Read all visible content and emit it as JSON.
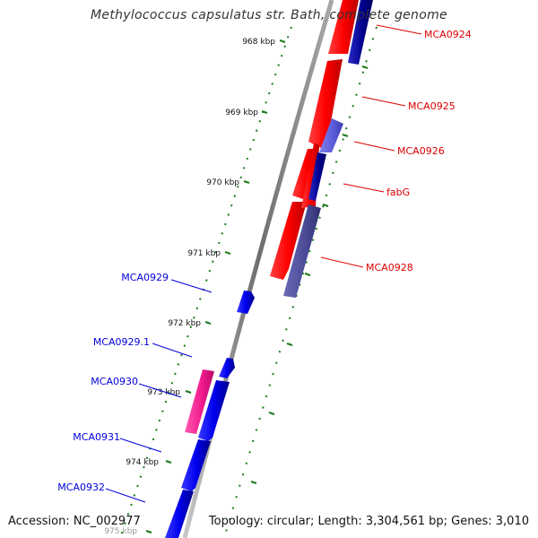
{
  "title": "Methylococcus capsulatus str. Bath, complete genome",
  "accession": "Accession: NC_002977",
  "summary": "Topology: circular; Length: 3,304,561 bp; Genes: 3,010",
  "ticks": [
    "968 kbp",
    "969 kbp",
    "970 kbp",
    "971 kbp",
    "972 kbp",
    "973 kbp",
    "974 kbp",
    "975 kbp"
  ],
  "genes_forward": [
    {
      "name": "MCA0924",
      "color": "#dd0000"
    },
    {
      "name": "MCA0925",
      "color": "#dd0000"
    },
    {
      "name": "MCA0926",
      "color": "#dd0000"
    },
    {
      "name": "fabG",
      "color": "#dd0000"
    },
    {
      "name": "MCA0928",
      "color": "#dd0000"
    }
  ],
  "genes_reverse": [
    {
      "name": "MCA0929",
      "color": "#0000dd"
    },
    {
      "name": "MCA0929.1",
      "color": "#0000dd"
    },
    {
      "name": "MCA0930",
      "color": "#0000dd"
    },
    {
      "name": "MCA0931",
      "color": "#0000dd"
    },
    {
      "name": "MCA0932",
      "color": "#0000dd"
    }
  ]
}
